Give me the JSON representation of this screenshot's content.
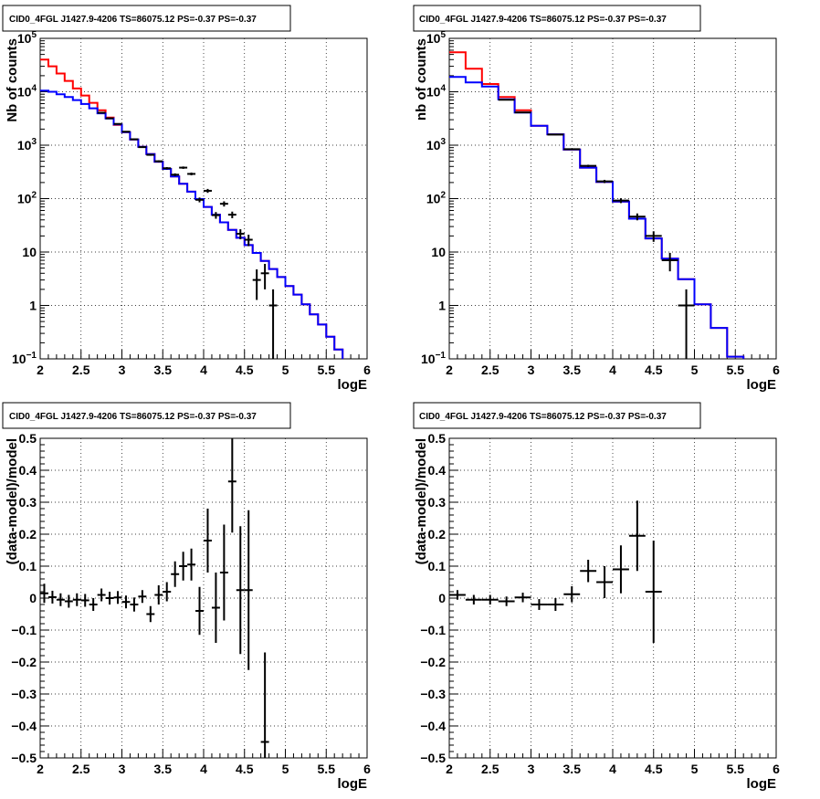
{
  "chart_data": [
    {
      "type": "line",
      "scale": "log",
      "title": "CID0_4FGL J1427.9-4206 TS=86075.12 PS=-0.37 PS=-0.37",
      "xlabel": "logE",
      "ylabel": "Nb of counts",
      "xlim": [
        2,
        6
      ],
      "ylim": [
        0.1,
        100000
      ],
      "grid": true,
      "x_ticks": [
        "2",
        "2.5",
        "3",
        "3.5",
        "4",
        "4.5",
        "5",
        "5.5",
        "6"
      ],
      "y_ticks": [
        {
          "v": 0.1,
          "main": "10",
          "sup": "−1"
        },
        {
          "v": 1,
          "main": "1",
          "sup": ""
        },
        {
          "v": 10,
          "main": "10",
          "sup": ""
        },
        {
          "v": 100,
          "main": "10",
          "sup": "2"
        },
        {
          "v": 1000,
          "main": "10",
          "sup": "3"
        },
        {
          "v": 10000,
          "main": "10",
          "sup": "4"
        },
        {
          "v": 100000,
          "main": "10",
          "sup": "5"
        }
      ],
      "bin_edges": [
        2.0,
        2.1,
        2.2,
        2.3,
        2.4,
        2.5,
        2.6,
        2.7,
        2.8,
        2.9,
        3.0,
        3.1,
        3.2,
        3.3,
        3.4,
        3.5,
        3.6,
        3.7,
        3.8,
        3.9,
        4.0,
        4.1,
        4.2,
        4.3,
        4.4,
        4.5,
        4.6,
        4.7,
        4.8,
        4.9,
        5.0,
        5.1,
        5.2,
        5.3,
        5.4,
        5.5,
        5.6,
        5.7,
        5.8,
        5.9,
        6.0
      ],
      "series": [
        {
          "color": "#ff0000",
          "values": [
            40000,
            30000,
            22000,
            16000,
            11500,
            8500,
            6200,
            4500,
            3300,
            2400,
            1750,
            1280,
            930,
            680,
            490,
            360,
            260,
            190,
            135,
            98,
            70,
            50,
            36,
            26,
            18.5,
            13.5,
            9.6,
            6.8,
            4.8,
            3.4,
            2.3,
            1.6,
            1.05,
            0.68,
            0.44,
            0.26,
            0.15,
            0.09,
            0.09,
            0.09
          ]
        },
        {
          "color": "#0000ff",
          "values": [
            10500,
            10000,
            9000,
            8000,
            7000,
            5900,
            4900,
            3950,
            3150,
            2450,
            1750,
            1280,
            930,
            680,
            490,
            360,
            260,
            190,
            135,
            98,
            70,
            50,
            36,
            26,
            18.5,
            13.5,
            9.6,
            6.8,
            4.8,
            3.4,
            2.3,
            1.6,
            1.05,
            0.68,
            0.44,
            0.26,
            0.15,
            0.09,
            0.09,
            0.09
          ]
        }
      ],
      "points": {
        "halfwidth": 0.05,
        "data": [
          {
            "x": 2.75,
            "y": 4050
          },
          {
            "x": 2.85,
            "y": 3180
          },
          {
            "x": 2.95,
            "y": 2500
          },
          {
            "x": 3.05,
            "y": 1790
          },
          {
            "x": 3.15,
            "y": 1290
          },
          {
            "x": 3.25,
            "y": 920
          },
          {
            "x": 3.35,
            "y": 660
          },
          {
            "x": 3.45,
            "y": 500
          },
          {
            "x": 3.55,
            "y": 370
          },
          {
            "x": 3.65,
            "y": 280
          },
          {
            "x": 3.75,
            "y": 380
          },
          {
            "x": 3.85,
            "y": 290
          },
          {
            "x": 3.95,
            "y": 95
          },
          {
            "x": 4.05,
            "y": 140
          },
          {
            "x": 4.15,
            "y": 49
          },
          {
            "x": 4.25,
            "y": 80
          },
          {
            "x": 4.35,
            "y": 50
          },
          {
            "x": 4.45,
            "y": 22
          },
          {
            "x": 4.55,
            "y": 17
          },
          {
            "x": 4.65,
            "y": 3
          },
          {
            "x": 4.75,
            "y": 4
          },
          {
            "x": 4.85,
            "y": 1
          }
        ]
      }
    },
    {
      "type": "line",
      "scale": "log",
      "title": "CID0_4FGL J1427.9-4206 TS=86075.12 PS=-0.37 PS=-0.37",
      "xlabel": "logE",
      "ylabel": "nb of counts",
      "xlim": [
        2,
        6
      ],
      "ylim": [
        0.1,
        100000
      ],
      "grid": true,
      "x_ticks": [
        "2",
        "2.5",
        "3",
        "3.5",
        "4",
        "4.5",
        "5",
        "5.5",
        "6"
      ],
      "y_ticks": [
        {
          "v": 0.1,
          "main": "10",
          "sup": "−1"
        },
        {
          "v": 1,
          "main": "1",
          "sup": ""
        },
        {
          "v": 10,
          "main": "10",
          "sup": ""
        },
        {
          "v": 100,
          "main": "10",
          "sup": "2"
        },
        {
          "v": 1000,
          "main": "10",
          "sup": "3"
        },
        {
          "v": 10000,
          "main": "10",
          "sup": "4"
        },
        {
          "v": 100000,
          "main": "10",
          "sup": "5"
        }
      ],
      "bin_edges": [
        2.0,
        2.2,
        2.4,
        2.6,
        2.8,
        3.0,
        3.2,
        3.4,
        3.6,
        3.8,
        4.0,
        4.2,
        4.4,
        4.6,
        4.8,
        5.0,
        5.2,
        5.4,
        5.6,
        5.8,
        6.0
      ],
      "series": [
        {
          "color": "#ff0000",
          "values": [
            55000,
            27000,
            14000,
            8000,
            4500,
            2300,
            1600,
            830,
            380,
            205,
            88,
            42,
            18,
            7.5,
            3.1,
            1.05,
            0.38,
            0.11,
            0.09,
            0.09
          ]
        },
        {
          "color": "#0000ff",
          "values": [
            19000,
            15000,
            12500,
            7200,
            4100,
            2300,
            1600,
            830,
            380,
            205,
            88,
            42,
            18,
            7.5,
            3.1,
            1.05,
            0.38,
            0.11,
            0.09,
            0.09
          ]
        }
      ],
      "points": {
        "halfwidth": 0.1,
        "data": [
          {
            "x": 2.7,
            "y": 7100
          },
          {
            "x": 2.9,
            "y": 4100
          },
          {
            "x": 3.3,
            "y": 1580
          },
          {
            "x": 3.5,
            "y": 840
          },
          {
            "x": 3.7,
            "y": 410
          },
          {
            "x": 3.9,
            "y": 210
          },
          {
            "x": 4.1,
            "y": 92
          },
          {
            "x": 4.3,
            "y": 46
          },
          {
            "x": 4.5,
            "y": 20
          },
          {
            "x": 4.7,
            "y": 7
          },
          {
            "x": 4.9,
            "y": 1
          }
        ]
      }
    },
    {
      "type": "scatter",
      "scale": "linear",
      "title": "CID0_4FGL J1427.9-4206 TS=86075.12 PS=-0.37 PS=-0.37",
      "xlabel": "logE",
      "ylabel": "(data-model)/model",
      "xlim": [
        2,
        6
      ],
      "ylim": [
        -0.5,
        0.5
      ],
      "grid": true,
      "x_ticks": [
        "2",
        "2.5",
        "3",
        "3.5",
        "4",
        "4.5",
        "5",
        "5.5",
        "6"
      ],
      "y_ticks": [
        "0.5",
        "0.4",
        "0.3",
        "0.2",
        "0.1",
        "0",
        "−0.1",
        "−0.2",
        "−0.3",
        "−0.4",
        "−0.5"
      ],
      "points": {
        "halfwidth": 0.05,
        "data": [
          {
            "x": 2.05,
            "y": 0.015,
            "err": 0.03
          },
          {
            "x": 2.15,
            "y": 0.003,
            "err": 0.02
          },
          {
            "x": 2.25,
            "y": -0.005,
            "err": 0.02
          },
          {
            "x": 2.35,
            "y": -0.01,
            "err": 0.02
          },
          {
            "x": 2.45,
            "y": -0.005,
            "err": 0.02
          },
          {
            "x": 2.55,
            "y": -0.007,
            "err": 0.02
          },
          {
            "x": 2.65,
            "y": -0.02,
            "err": 0.02
          },
          {
            "x": 2.75,
            "y": 0.01,
            "err": 0.02
          },
          {
            "x": 2.85,
            "y": 0.0,
            "err": 0.02
          },
          {
            "x": 2.95,
            "y": 0.002,
            "err": 0.02
          },
          {
            "x": 3.05,
            "y": -0.012,
            "err": 0.02
          },
          {
            "x": 3.15,
            "y": -0.02,
            "err": 0.022
          },
          {
            "x": 3.25,
            "y": 0.005,
            "err": 0.02
          },
          {
            "x": 3.35,
            "y": -0.05,
            "err": 0.025
          },
          {
            "x": 3.45,
            "y": 0.01,
            "err": 0.03
          },
          {
            "x": 3.55,
            "y": 0.02,
            "err": 0.03
          },
          {
            "x": 3.65,
            "y": 0.075,
            "err": 0.04
          },
          {
            "x": 3.75,
            "y": 0.1,
            "err": 0.045
          },
          {
            "x": 3.85,
            "y": 0.105,
            "err": 0.05
          },
          {
            "x": 3.95,
            "y": -0.04,
            "err": 0.075
          },
          {
            "x": 4.05,
            "y": 0.18,
            "err": 0.1
          },
          {
            "x": 4.15,
            "y": -0.03,
            "err": 0.11
          },
          {
            "x": 4.25,
            "y": 0.08,
            "err": 0.15
          },
          {
            "x": 4.35,
            "y": 0.365,
            "err": 0.16
          },
          {
            "x": 4.45,
            "y": 0.025,
            "err": 0.2
          },
          {
            "x": 4.55,
            "y": 0.025,
            "err": 0.25
          },
          {
            "x": 4.75,
            "y": -0.45,
            "err": 0.28
          }
        ]
      }
    },
    {
      "type": "scatter",
      "scale": "linear",
      "title": "CID0_4FGL J1427.9-4206 TS=86075.12 PS=-0.37 PS=-0.37",
      "xlabel": "logE",
      "ylabel": "(data-model)/model",
      "xlim": [
        2,
        6
      ],
      "ylim": [
        -0.5,
        0.5
      ],
      "grid": true,
      "x_ticks": [
        "2",
        "2.5",
        "3",
        "3.5",
        "4",
        "4.5",
        "5",
        "5.5",
        "6"
      ],
      "y_ticks": [
        "0.5",
        "0.4",
        "0.3",
        "0.2",
        "0.1",
        "0",
        "−0.1",
        "−0.2",
        "−0.3",
        "−0.4",
        "−0.5"
      ],
      "points": {
        "halfwidth": 0.1,
        "data": [
          {
            "x": 2.1,
            "y": 0.01,
            "err": 0.015
          },
          {
            "x": 2.3,
            "y": -0.005,
            "err": 0.015
          },
          {
            "x": 2.5,
            "y": -0.005,
            "err": 0.015
          },
          {
            "x": 2.7,
            "y": -0.01,
            "err": 0.015
          },
          {
            "x": 2.9,
            "y": 0.002,
            "err": 0.015
          },
          {
            "x": 3.1,
            "y": -0.02,
            "err": 0.017
          },
          {
            "x": 3.3,
            "y": -0.02,
            "err": 0.02
          },
          {
            "x": 3.5,
            "y": 0.012,
            "err": 0.025
          },
          {
            "x": 3.7,
            "y": 0.085,
            "err": 0.035
          },
          {
            "x": 3.9,
            "y": 0.05,
            "err": 0.05
          },
          {
            "x": 4.1,
            "y": 0.09,
            "err": 0.075
          },
          {
            "x": 4.3,
            "y": 0.195,
            "err": 0.11
          },
          {
            "x": 4.5,
            "y": 0.02,
            "err": 0.16
          }
        ]
      }
    }
  ]
}
